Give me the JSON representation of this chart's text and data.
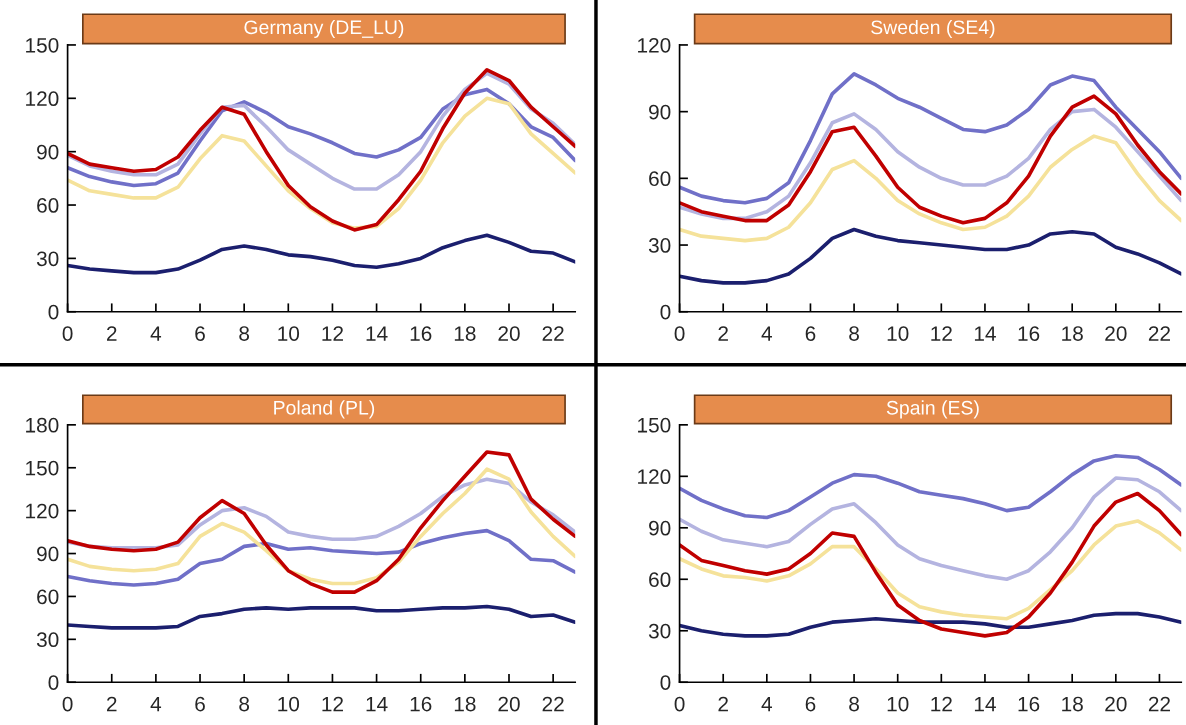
{
  "chart_data": [
    {
      "type": "line",
      "title": "Germany (DE_LU)",
      "x": [
        0,
        1,
        2,
        3,
        4,
        5,
        6,
        7,
        8,
        9,
        10,
        11,
        12,
        13,
        14,
        15,
        16,
        17,
        18,
        19,
        20,
        21,
        22,
        23
      ],
      "xlim": [
        0,
        23
      ],
      "xticks": [
        0,
        2,
        4,
        6,
        8,
        10,
        12,
        14,
        16,
        18,
        20,
        22
      ],
      "ylim": [
        0,
        150
      ],
      "yticks": [
        0,
        30,
        60,
        90,
        120,
        150
      ],
      "series": [
        {
          "color": "#1b1f6e",
          "values": [
            26,
            24,
            23,
            22,
            22,
            24,
            29,
            35,
            37,
            35,
            32,
            31,
            29,
            26,
            25,
            27,
            30,
            36,
            40,
            43,
            39,
            34,
            33,
            28
          ]
        },
        {
          "color": "#7070c8",
          "values": [
            81,
            76,
            73,
            71,
            72,
            78,
            96,
            113,
            118,
            112,
            104,
            100,
            95,
            89,
            87,
            91,
            98,
            114,
            122,
            125,
            117,
            104,
            98,
            85
          ]
        },
        {
          "color": "#b4b4e0",
          "values": [
            88,
            82,
            79,
            77,
            77,
            83,
            100,
            115,
            116,
            104,
            91,
            83,
            75,
            69,
            69,
            77,
            90,
            110,
            125,
            134,
            128,
            114,
            106,
            94
          ]
        },
        {
          "color": "#f5e29a",
          "values": [
            74,
            68,
            66,
            64,
            64,
            70,
            86,
            99,
            96,
            82,
            68,
            58,
            50,
            47,
            48,
            58,
            74,
            95,
            110,
            120,
            117,
            100,
            89,
            78
          ]
        },
        {
          "color": "#c00000",
          "values": [
            89,
            83,
            81,
            79,
            80,
            87,
            102,
            115,
            111,
            90,
            71,
            59,
            51,
            46,
            49,
            63,
            79,
            103,
            123,
            136,
            130,
            115,
            104,
            93
          ]
        }
      ]
    },
    {
      "type": "line",
      "title": "Sweden (SE4)",
      "x": [
        0,
        1,
        2,
        3,
        4,
        5,
        6,
        7,
        8,
        9,
        10,
        11,
        12,
        13,
        14,
        15,
        16,
        17,
        18,
        19,
        20,
        21,
        22,
        23
      ],
      "xlim": [
        0,
        23
      ],
      "xticks": [
        0,
        2,
        4,
        6,
        8,
        10,
        12,
        14,
        16,
        18,
        20,
        22
      ],
      "ylim": [
        0,
        120
      ],
      "yticks": [
        0,
        30,
        60,
        90,
        120
      ],
      "series": [
        {
          "color": "#1b1f6e",
          "values": [
            16,
            14,
            13,
            13,
            14,
            17,
            24,
            33,
            37,
            34,
            32,
            31,
            30,
            29,
            28,
            28,
            30,
            35,
            36,
            35,
            29,
            26,
            22,
            17
          ]
        },
        {
          "color": "#7070c8",
          "values": [
            56,
            52,
            50,
            49,
            51,
            58,
            77,
            98,
            107,
            102,
            96,
            92,
            87,
            82,
            81,
            84,
            91,
            102,
            106,
            104,
            92,
            82,
            72,
            60
          ]
        },
        {
          "color": "#b4b4e0",
          "values": [
            47,
            44,
            42,
            42,
            45,
            52,
            67,
            85,
            89,
            82,
            72,
            65,
            60,
            57,
            57,
            61,
            69,
            82,
            90,
            91,
            83,
            72,
            61,
            50
          ]
        },
        {
          "color": "#f5e29a",
          "values": [
            37,
            34,
            33,
            32,
            33,
            38,
            49,
            64,
            68,
            60,
            50,
            44,
            40,
            37,
            38,
            43,
            52,
            65,
            73,
            79,
            76,
            62,
            50,
            41
          ]
        },
        {
          "color": "#c00000",
          "values": [
            49,
            45,
            43,
            41,
            41,
            48,
            63,
            81,
            83,
            70,
            56,
            47,
            43,
            40,
            42,
            49,
            61,
            79,
            92,
            97,
            89,
            75,
            63,
            53
          ]
        }
      ]
    },
    {
      "type": "line",
      "title": "Poland (PL)",
      "x": [
        0,
        1,
        2,
        3,
        4,
        5,
        6,
        7,
        8,
        9,
        10,
        11,
        12,
        13,
        14,
        15,
        16,
        17,
        18,
        19,
        20,
        21,
        22,
        23
      ],
      "xlim": [
        0,
        23
      ],
      "xticks": [
        0,
        2,
        4,
        6,
        8,
        10,
        12,
        14,
        16,
        18,
        20,
        22
      ],
      "ylim": [
        0,
        180
      ],
      "yticks": [
        0,
        30,
        60,
        90,
        120,
        150,
        180
      ],
      "series": [
        {
          "color": "#1b1f6e",
          "values": [
            40,
            39,
            38,
            38,
            38,
            39,
            46,
            48,
            51,
            52,
            51,
            52,
            52,
            52,
            50,
            50,
            51,
            52,
            52,
            53,
            51,
            46,
            47,
            42
          ]
        },
        {
          "color": "#7070c8",
          "values": [
            74,
            71,
            69,
            68,
            69,
            72,
            83,
            86,
            95,
            97,
            93,
            94,
            92,
            91,
            90,
            91,
            97,
            101,
            104,
            106,
            99,
            86,
            85,
            77
          ]
        },
        {
          "color": "#b4b4e0",
          "values": [
            98,
            95,
            94,
            94,
            94,
            96,
            110,
            120,
            122,
            116,
            105,
            102,
            100,
            100,
            102,
            109,
            118,
            130,
            138,
            142,
            139,
            126,
            117,
            105
          ]
        },
        {
          "color": "#f5e29a",
          "values": [
            86,
            81,
            79,
            78,
            79,
            83,
            102,
            111,
            105,
            92,
            78,
            72,
            69,
            69,
            73,
            84,
            102,
            118,
            132,
            149,
            142,
            119,
            102,
            88
          ]
        },
        {
          "color": "#c00000",
          "values": [
            99,
            95,
            93,
            92,
            93,
            98,
            115,
            127,
            118,
            96,
            78,
            69,
            63,
            63,
            71,
            86,
            108,
            127,
            144,
            161,
            159,
            128,
            114,
            102
          ]
        }
      ]
    },
    {
      "type": "line",
      "title": "Spain (ES)",
      "x": [
        0,
        1,
        2,
        3,
        4,
        5,
        6,
        7,
        8,
        9,
        10,
        11,
        12,
        13,
        14,
        15,
        16,
        17,
        18,
        19,
        20,
        21,
        22,
        23
      ],
      "xlim": [
        0,
        23
      ],
      "xticks": [
        0,
        2,
        4,
        6,
        8,
        10,
        12,
        14,
        16,
        18,
        20,
        22
      ],
      "ylim": [
        0,
        150
      ],
      "yticks": [
        0,
        30,
        60,
        90,
        120,
        150
      ],
      "series": [
        {
          "color": "#1b1f6e",
          "values": [
            33,
            30,
            28,
            27,
            27,
            28,
            32,
            35,
            36,
            37,
            36,
            35,
            35,
            35,
            34,
            32,
            32,
            34,
            36,
            39,
            40,
            40,
            38,
            35
          ]
        },
        {
          "color": "#7070c8",
          "values": [
            113,
            106,
            101,
            97,
            96,
            100,
            108,
            116,
            121,
            120,
            116,
            111,
            109,
            107,
            104,
            100,
            102,
            111,
            121,
            129,
            132,
            131,
            124,
            115
          ]
        },
        {
          "color": "#b4b4e0",
          "values": [
            95,
            88,
            83,
            81,
            79,
            82,
            92,
            101,
            104,
            93,
            80,
            72,
            68,
            65,
            62,
            60,
            65,
            76,
            90,
            108,
            119,
            118,
            111,
            100
          ]
        },
        {
          "color": "#f5e29a",
          "values": [
            72,
            66,
            62,
            61,
            59,
            62,
            69,
            79,
            79,
            66,
            52,
            44,
            41,
            39,
            38,
            37,
            43,
            54,
            65,
            80,
            91,
            94,
            87,
            77
          ]
        },
        {
          "color": "#c00000",
          "values": [
            80,
            71,
            68,
            65,
            63,
            66,
            75,
            87,
            85,
            64,
            45,
            36,
            31,
            29,
            27,
            29,
            38,
            52,
            70,
            91,
            105,
            110,
            100,
            86
          ]
        }
      ]
    }
  ]
}
